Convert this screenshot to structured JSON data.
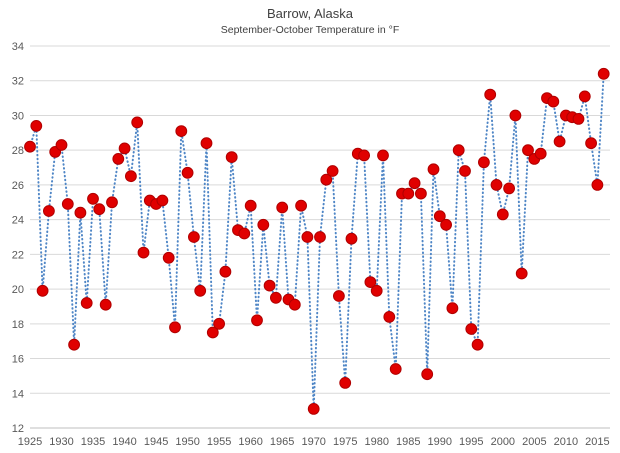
{
  "chart_data": {
    "type": "scatter",
    "title": "Barrow, Alaska",
    "subtitle": "September-October Temperature in °F",
    "x": [
      1925,
      1926,
      1927,
      1928,
      1929,
      1930,
      1931,
      1932,
      1933,
      1934,
      1935,
      1936,
      1937,
      1938,
      1939,
      1940,
      1941,
      1942,
      1943,
      1944,
      1945,
      1946,
      1947,
      1948,
      1949,
      1950,
      1951,
      1952,
      1953,
      1954,
      1955,
      1956,
      1957,
      1958,
      1959,
      1960,
      1961,
      1962,
      1963,
      1964,
      1965,
      1966,
      1967,
      1968,
      1969,
      1970,
      1971,
      1972,
      1973,
      1974,
      1975,
      1976,
      1977,
      1978,
      1979,
      1980,
      1981,
      1982,
      1983,
      1984,
      1985,
      1986,
      1987,
      1988,
      1989,
      1990,
      1991,
      1992,
      1993,
      1994,
      1995,
      1996,
      1997,
      1998,
      1999,
      2000,
      2001,
      2002,
      2003,
      2004,
      2005,
      2006,
      2007,
      2008,
      2009,
      2010,
      2011,
      2012,
      2013,
      2014,
      2015,
      2016
    ],
    "y": [
      28.2,
      29.4,
      19.9,
      24.5,
      27.9,
      28.3,
      24.9,
      16.8,
      24.4,
      19.2,
      25.2,
      24.6,
      19.1,
      25.0,
      27.5,
      28.1,
      26.5,
      29.6,
      22.1,
      25.1,
      24.9,
      25.1,
      21.8,
      17.8,
      29.1,
      26.7,
      23.0,
      19.9,
      28.4,
      17.5,
      18.0,
      21.0,
      27.6,
      23.4,
      23.2,
      24.8,
      18.2,
      23.7,
      20.2,
      19.5,
      24.7,
      19.4,
      19.1,
      24.8,
      23.0,
      13.1,
      23.0,
      26.3,
      26.8,
      19.6,
      14.6,
      22.9,
      27.8,
      27.7,
      20.4,
      19.9,
      27.7,
      18.4,
      15.4,
      25.5,
      25.5,
      26.1,
      25.5,
      15.1,
      26.9,
      24.2,
      23.7,
      18.9,
      28.0,
      26.8,
      17.7,
      16.8,
      27.3,
      31.2,
      26.0,
      24.3,
      25.8,
      30.0,
      20.9,
      28.0,
      27.5,
      27.8,
      31.0,
      30.8,
      28.5,
      30.0,
      29.9,
      29.8,
      31.1,
      28.4,
      26.0,
      32.4
    ],
    "xlim": [
      1925,
      2017
    ],
    "ylim": [
      12,
      34
    ],
    "x_ticks": [
      1925,
      1930,
      1935,
      1940,
      1945,
      1950,
      1955,
      1960,
      1965,
      1970,
      1975,
      1980,
      1985,
      1990,
      1995,
      2000,
      2005,
      2010,
      2015
    ],
    "y_ticks": [
      12,
      14,
      16,
      18,
      20,
      22,
      24,
      26,
      28,
      30,
      32,
      34
    ],
    "grid": "horizontal",
    "legend": "none",
    "gridline_color": "#d9d9d9",
    "axis_line_color": "#bfbfbf",
    "tick_label_color": "#595959",
    "marker_color": "#e00000",
    "marker_edge_color": "#b00000",
    "line_color": "#4f86c6",
    "line_style": "dotted"
  }
}
